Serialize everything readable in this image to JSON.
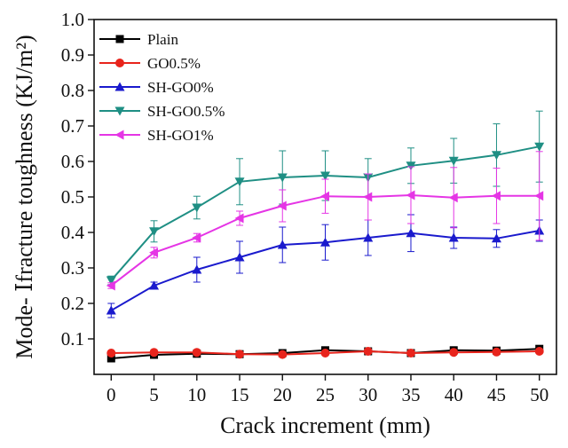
{
  "chart_data": {
    "type": "line",
    "xlabel": "Crack increment (mm)",
    "ylabel": "Mode- Ⅰfracture toughness (KJ/m²)",
    "xlim": [
      -2,
      52
    ],
    "ylim": [
      0,
      1.0
    ],
    "xticks": [
      0,
      5,
      10,
      15,
      20,
      25,
      30,
      35,
      40,
      45,
      50
    ],
    "yticks": [
      0.1,
      0.2,
      0.3,
      0.4,
      0.5,
      0.6,
      0.7,
      0.8,
      0.9,
      1.0
    ],
    "x": [
      0,
      5,
      10,
      15,
      20,
      25,
      30,
      35,
      40,
      45,
      50
    ],
    "grid": false,
    "legend_position": "top-left",
    "series": [
      {
        "name": "Plain",
        "color": "#000000",
        "marker": "square",
        "values": [
          0.045,
          0.055,
          0.058,
          0.057,
          0.06,
          0.068,
          0.065,
          0.06,
          0.068,
          0.067,
          0.072
        ],
        "errors": [
          0.004,
          0.004,
          0.004,
          0.004,
          0.004,
          0.004,
          0.004,
          0.004,
          0.004,
          0.004,
          0.004
        ]
      },
      {
        "name": "GO0.5%",
        "color": "#e8241c",
        "marker": "circle",
        "values": [
          0.06,
          0.062,
          0.062,
          0.057,
          0.056,
          0.06,
          0.065,
          0.06,
          0.062,
          0.063,
          0.065
        ],
        "errors": [
          0.004,
          0.004,
          0.004,
          0.004,
          0.004,
          0.004,
          0.004,
          0.004,
          0.004,
          0.004,
          0.004
        ]
      },
      {
        "name": "SH-GO0%",
        "color": "#1a1acd",
        "marker": "triangle-up",
        "values": [
          0.18,
          0.25,
          0.295,
          0.33,
          0.365,
          0.372,
          0.385,
          0.398,
          0.385,
          0.383,
          0.405
        ],
        "errors": [
          0.02,
          0.01,
          0.035,
          0.045,
          0.05,
          0.05,
          0.05,
          0.052,
          0.03,
          0.025,
          0.03
        ]
      },
      {
        "name": "SH-GO0.5%",
        "color": "#1f8f84",
        "marker": "triangle-down",
        "values": [
          0.265,
          0.403,
          0.47,
          0.543,
          0.555,
          0.56,
          0.555,
          0.588,
          0.602,
          0.618,
          0.642
        ],
        "errors": [
          0.012,
          0.03,
          0.032,
          0.065,
          0.075,
          0.07,
          0.053,
          0.05,
          0.063,
          0.088,
          0.1
        ]
      },
      {
        "name": "SH-GO1%",
        "color": "#e535e5",
        "marker": "triangle-left",
        "values": [
          0.25,
          0.343,
          0.385,
          0.44,
          0.475,
          0.502,
          0.5,
          0.505,
          0.498,
          0.503,
          0.503
        ],
        "errors": [
          0.008,
          0.015,
          0.012,
          0.02,
          0.045,
          0.048,
          0.065,
          0.08,
          0.085,
          0.078,
          0.125
        ]
      }
    ]
  }
}
